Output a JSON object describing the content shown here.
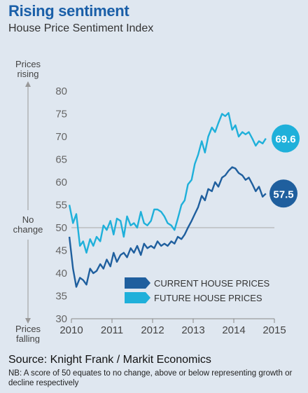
{
  "header": {
    "title": "Rising sentiment",
    "subtitle": "House Price Sentiment Index"
  },
  "footer": {
    "source": "Source: Knight Frank / Markit Economics",
    "note": "NB: A score of 50 equates to no change, above or below representing growth or decline respectively"
  },
  "side_labels": {
    "top_line1": "Prices",
    "top_line2": "rising",
    "mid_line1": "No",
    "mid_line2": "change",
    "bottom_line1": "Prices",
    "bottom_line2": "falling"
  },
  "colors": {
    "current": "#1f5f9e",
    "future": "#1fb0da",
    "axis": "#888888",
    "background": "#dfe7f0",
    "reference": "#a8a8a8"
  },
  "chart_data": {
    "type": "line",
    "title": "House Price Sentiment Index",
    "xlabel": "",
    "ylabel": "",
    "ylim": [
      30,
      80
    ],
    "xlim": [
      2010,
      2015
    ],
    "yticks": [
      "30",
      "35",
      "40",
      "45",
      "50",
      "55",
      "60",
      "65",
      "70",
      "75",
      "80"
    ],
    "xticks": [
      "2010",
      "2011",
      "2012",
      "2013",
      "2014",
      "2015"
    ],
    "reference_line": 50,
    "grid": false,
    "legend_position": "bottom-right",
    "series": [
      {
        "name": "CURRENT HOUSE PRICES",
        "end_label": "57.5",
        "x": [
          2009.95,
          2010.04,
          2010.12,
          2010.21,
          2010.29,
          2010.37,
          2010.46,
          2010.54,
          2010.62,
          2010.71,
          2010.79,
          2010.87,
          2010.96,
          2011.04,
          2011.12,
          2011.21,
          2011.29,
          2011.37,
          2011.46,
          2011.54,
          2011.62,
          2011.71,
          2011.79,
          2011.87,
          2011.96,
          2012.04,
          2012.12,
          2012.21,
          2012.29,
          2012.37,
          2012.46,
          2012.54,
          2012.62,
          2012.71,
          2012.79,
          2012.87,
          2012.96,
          2013.04,
          2013.12,
          2013.21,
          2013.29,
          2013.37,
          2013.46,
          2013.54,
          2013.62,
          2013.71,
          2013.79,
          2013.87,
          2013.96,
          2014.04,
          2014.12,
          2014.21,
          2014.29,
          2014.37,
          2014.46,
          2014.54,
          2014.62,
          2014.71,
          2014.79
        ],
        "values": [
          48.0,
          41.0,
          37.0,
          39.0,
          38.5,
          37.5,
          41.0,
          40.0,
          40.5,
          42.0,
          41.0,
          43.0,
          41.5,
          44.5,
          42.5,
          44.0,
          44.5,
          43.5,
          45.5,
          44.5,
          46.0,
          44.0,
          46.5,
          45.5,
          46.0,
          45.5,
          47.0,
          46.0,
          46.5,
          46.0,
          47.0,
          46.5,
          48.0,
          47.5,
          48.5,
          50.0,
          51.5,
          53.0,
          54.5,
          57.0,
          56.0,
          58.5,
          58.0,
          60.0,
          59.0,
          61.0,
          61.5,
          62.5,
          63.3,
          63.0,
          62.0,
          61.5,
          60.5,
          61.0,
          59.5,
          58.0,
          59.0,
          56.8,
          57.5
        ]
      },
      {
        "name": "FUTURE HOUSE PRICES",
        "end_label": "69.6",
        "x": [
          2009.95,
          2010.04,
          2010.12,
          2010.21,
          2010.29,
          2010.37,
          2010.46,
          2010.54,
          2010.62,
          2010.71,
          2010.79,
          2010.87,
          2010.96,
          2011.04,
          2011.12,
          2011.21,
          2011.29,
          2011.37,
          2011.46,
          2011.54,
          2011.62,
          2011.71,
          2011.79,
          2011.87,
          2011.96,
          2012.04,
          2012.12,
          2012.21,
          2012.29,
          2012.37,
          2012.46,
          2012.54,
          2012.62,
          2012.71,
          2012.79,
          2012.87,
          2012.96,
          2013.04,
          2013.12,
          2013.21,
          2013.29,
          2013.37,
          2013.46,
          2013.54,
          2013.62,
          2013.71,
          2013.79,
          2013.87,
          2013.96,
          2014.04,
          2014.12,
          2014.21,
          2014.29,
          2014.37,
          2014.46,
          2014.54,
          2014.62,
          2014.71,
          2014.79
        ],
        "values": [
          55.0,
          51.0,
          53.0,
          46.0,
          47.0,
          44.5,
          47.5,
          46.0,
          48.0,
          47.0,
          50.5,
          49.5,
          51.5,
          48.5,
          52.0,
          51.5,
          48.0,
          52.5,
          50.5,
          51.0,
          50.0,
          53.5,
          51.0,
          50.5,
          51.5,
          54.0,
          54.0,
          53.5,
          52.5,
          51.0,
          50.5,
          49.5,
          52.0,
          55.0,
          56.0,
          59.5,
          60.5,
          64.0,
          66.0,
          69.0,
          66.5,
          70.0,
          72.0,
          71.0,
          73.0,
          75.0,
          74.5,
          75.2,
          71.5,
          72.5,
          70.0,
          71.0,
          70.5,
          71.0,
          69.5,
          68.0,
          69.0,
          68.5,
          69.6
        ]
      }
    ]
  }
}
